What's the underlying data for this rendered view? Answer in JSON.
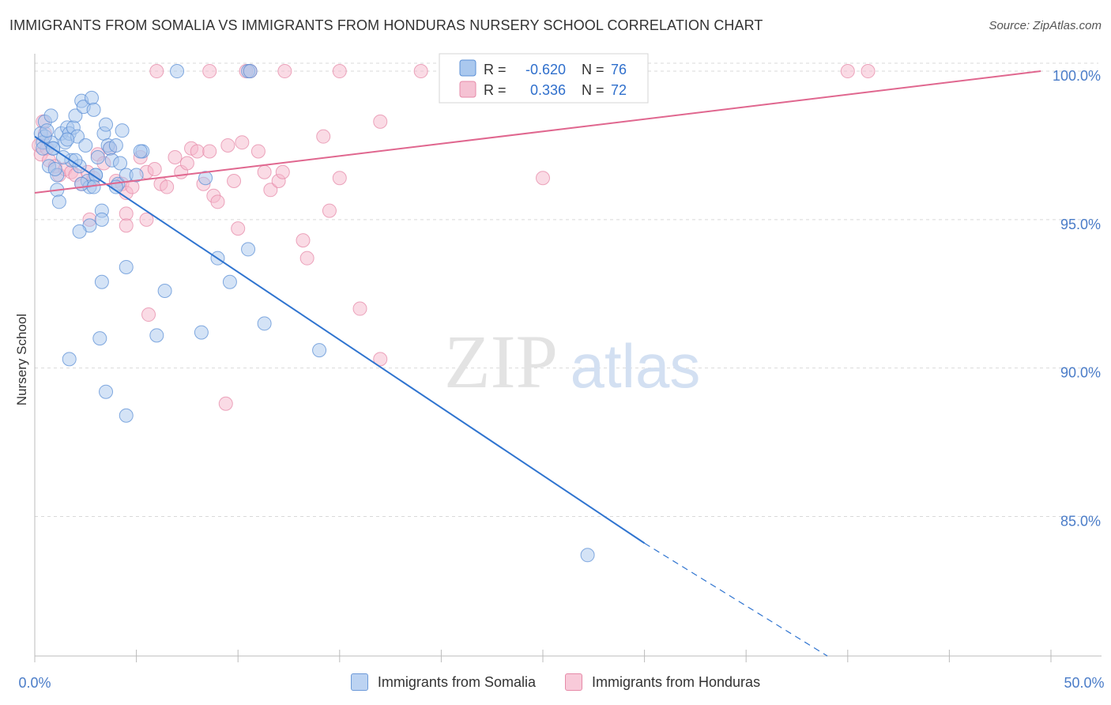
{
  "title": "IMMIGRANTS FROM SOMALIA VS IMMIGRANTS FROM HONDURAS NURSERY SCHOOL CORRELATION CHART",
  "source": "Source: ZipAtlas.com",
  "watermark": {
    "zip": "ZIP",
    "atlas": "atlas"
  },
  "colors": {
    "somalia_fill": "#aac8ee",
    "somalia_stroke": "#5b8fd6",
    "somalia_line": "#2f74d0",
    "honduras_fill": "#f5b8cc",
    "honduras_stroke": "#e68aa8",
    "honduras_line": "#e0678f",
    "axis_label": "#4a7cc8",
    "grid": "#d9d9d9"
  },
  "legend": {
    "r_label": "R =",
    "n_label": "N =",
    "rows": [
      {
        "r": "-0.620",
        "n": "76"
      },
      {
        "r": "0.336",
        "n": "72"
      }
    ]
  },
  "chart_data": {
    "type": "scatter",
    "title": "IMMIGRANTS FROM SOMALIA VS IMMIGRANTS FROM HONDURAS NURSERY SCHOOL CORRELATION CHART",
    "xlabel": "",
    "ylabel": "Nursery School",
    "xlim": [
      0,
      50
    ],
    "ylim": [
      80.3,
      100.8
    ],
    "x_tick_labels": [
      "0.0%",
      "50.0%"
    ],
    "y_ticks": [
      85,
      90,
      95,
      100
    ],
    "y_tick_labels": [
      "85.0%",
      "90.0%",
      "95.0%",
      "100.0%"
    ],
    "grid": true,
    "legend_position": "top-center",
    "series": [
      {
        "name": "Immigrants from Somalia",
        "r": -0.62,
        "n": 76,
        "trend": {
          "x0": 0,
          "y0": 97.8,
          "x1": 30,
          "y1": 84.1,
          "dash_to_x": 39,
          "dash_to_y": 80.3
        },
        "points": [
          [
            0.3,
            97.9
          ],
          [
            0.4,
            97.6
          ],
          [
            0.5,
            98.3
          ],
          [
            0.4,
            97.4
          ],
          [
            0.8,
            97.6
          ],
          [
            0.7,
            96.8
          ],
          [
            0.8,
            98.5
          ],
          [
            0.9,
            97.4
          ],
          [
            1.1,
            96.0
          ],
          [
            1.1,
            96.5
          ],
          [
            1.2,
            95.6
          ],
          [
            1.3,
            97.9
          ],
          [
            1.5,
            97.6
          ],
          [
            1.6,
            98.1
          ],
          [
            1.7,
            97.9
          ],
          [
            1.8,
            97.0
          ],
          [
            1.9,
            98.1
          ],
          [
            2.0,
            98.5
          ],
          [
            2.1,
            97.8
          ],
          [
            2.2,
            96.8
          ],
          [
            2.3,
            99.0
          ],
          [
            2.4,
            98.8
          ],
          [
            2.5,
            97.5
          ],
          [
            2.6,
            96.3
          ],
          [
            2.7,
            96.1
          ],
          [
            2.8,
            99.1
          ],
          [
            2.9,
            98.7
          ],
          [
            3.0,
            96.5
          ],
          [
            3.1,
            97.1
          ],
          [
            3.3,
            95.3
          ],
          [
            3.4,
            97.9
          ],
          [
            3.5,
            98.2
          ],
          [
            3.6,
            97.5
          ],
          [
            3.7,
            97.4
          ],
          [
            3.8,
            97.0
          ],
          [
            4.0,
            97.5
          ],
          [
            4.1,
            96.2
          ],
          [
            4.2,
            96.9
          ],
          [
            4.3,
            98.0
          ],
          [
            4.5,
            96.5
          ],
          [
            3.3,
            95.0
          ],
          [
            2.7,
            94.8
          ],
          [
            2.2,
            94.6
          ],
          [
            4.5,
            93.4
          ],
          [
            3.3,
            92.9
          ],
          [
            6.4,
            92.6
          ],
          [
            3.2,
            91.0
          ],
          [
            6.0,
            91.1
          ],
          [
            8.2,
            91.2
          ],
          [
            1.7,
            90.3
          ],
          [
            3.5,
            89.2
          ],
          [
            4.5,
            88.4
          ],
          [
            7.0,
            100.0
          ],
          [
            10.5,
            100.0
          ],
          [
            10.6,
            100.0
          ],
          [
            5.3,
            97.3
          ],
          [
            5.2,
            97.3
          ],
          [
            8.4,
            96.4
          ],
          [
            9.0,
            93.7
          ],
          [
            9.6,
            92.9
          ],
          [
            10.5,
            94.0
          ],
          [
            11.3,
            91.5
          ],
          [
            14.0,
            90.6
          ],
          [
            27.2,
            83.7
          ],
          [
            0.5,
            97.8
          ],
          [
            0.6,
            98.0
          ],
          [
            1.0,
            96.7
          ],
          [
            1.4,
            97.1
          ],
          [
            2.0,
            97.0
          ],
          [
            2.3,
            96.2
          ],
          [
            3.0,
            96.5
          ],
          [
            4.0,
            96.1
          ],
          [
            5.0,
            96.5
          ],
          [
            0.9,
            97.4
          ],
          [
            1.6,
            97.7
          ],
          [
            2.9,
            96.1
          ]
        ]
      },
      {
        "name": "Immigrants from Honduras",
        "r": 0.336,
        "n": 72,
        "trend": {
          "x0": 0,
          "y0": 95.9,
          "x1": 49.5,
          "y1": 100.0
        },
        "points": [
          [
            0.2,
            97.5
          ],
          [
            0.3,
            97.2
          ],
          [
            0.4,
            98.3
          ],
          [
            0.5,
            97.9
          ],
          [
            0.6,
            97.4
          ],
          [
            0.7,
            97.0
          ],
          [
            1.0,
            96.8
          ],
          [
            1.2,
            96.5
          ],
          [
            1.5,
            96.7
          ],
          [
            1.8,
            96.6
          ],
          [
            2.0,
            96.5
          ],
          [
            2.3,
            96.2
          ],
          [
            2.6,
            96.6
          ],
          [
            2.9,
            96.4
          ],
          [
            3.1,
            97.2
          ],
          [
            3.4,
            96.9
          ],
          [
            3.7,
            97.4
          ],
          [
            4.0,
            96.3
          ],
          [
            4.3,
            96.2
          ],
          [
            4.5,
            95.9
          ],
          [
            4.8,
            96.1
          ],
          [
            5.2,
            97.1
          ],
          [
            5.5,
            96.6
          ],
          [
            5.9,
            96.7
          ],
          [
            6.2,
            96.2
          ],
          [
            6.5,
            96.1
          ],
          [
            6.9,
            97.1
          ],
          [
            7.2,
            96.6
          ],
          [
            7.5,
            96.9
          ],
          [
            7.7,
            97.4
          ],
          [
            8.0,
            97.3
          ],
          [
            8.3,
            96.2
          ],
          [
            8.6,
            97.3
          ],
          [
            8.8,
            95.8
          ],
          [
            9.0,
            95.6
          ],
          [
            9.5,
            97.5
          ],
          [
            9.8,
            96.3
          ],
          [
            10.2,
            97.6
          ],
          [
            11.0,
            97.3
          ],
          [
            11.3,
            96.6
          ],
          [
            11.6,
            96.0
          ],
          [
            12.0,
            96.3
          ],
          [
            12.2,
            96.6
          ],
          [
            13.2,
            94.3
          ],
          [
            13.4,
            93.7
          ],
          [
            14.2,
            97.8
          ],
          [
            14.5,
            95.3
          ],
          [
            15.0,
            96.4
          ],
          [
            16.0,
            92.0
          ],
          [
            17.0,
            98.3
          ],
          [
            17.0,
            90.3
          ],
          [
            21.0,
            100.0
          ],
          [
            25.0,
            96.4
          ],
          [
            6.0,
            100.0
          ],
          [
            8.6,
            100.0
          ],
          [
            10.4,
            100.0
          ],
          [
            10.6,
            100.0
          ],
          [
            12.3,
            100.0
          ],
          [
            15.0,
            100.0
          ],
          [
            19.0,
            100.0
          ],
          [
            23.5,
            100.0
          ],
          [
            25.0,
            100.0
          ],
          [
            28.5,
            100.0
          ],
          [
            40.0,
            100.0
          ],
          [
            41.0,
            100.0
          ],
          [
            2.7,
            95.0
          ],
          [
            4.5,
            95.2
          ],
          [
            4.5,
            94.8
          ],
          [
            5.5,
            95.0
          ],
          [
            10.0,
            94.7
          ],
          [
            5.6,
            91.8
          ],
          [
            9.4,
            88.8
          ]
        ]
      }
    ]
  },
  "bottom_legend": [
    "Immigrants from Somalia",
    "Immigrants from Honduras"
  ]
}
